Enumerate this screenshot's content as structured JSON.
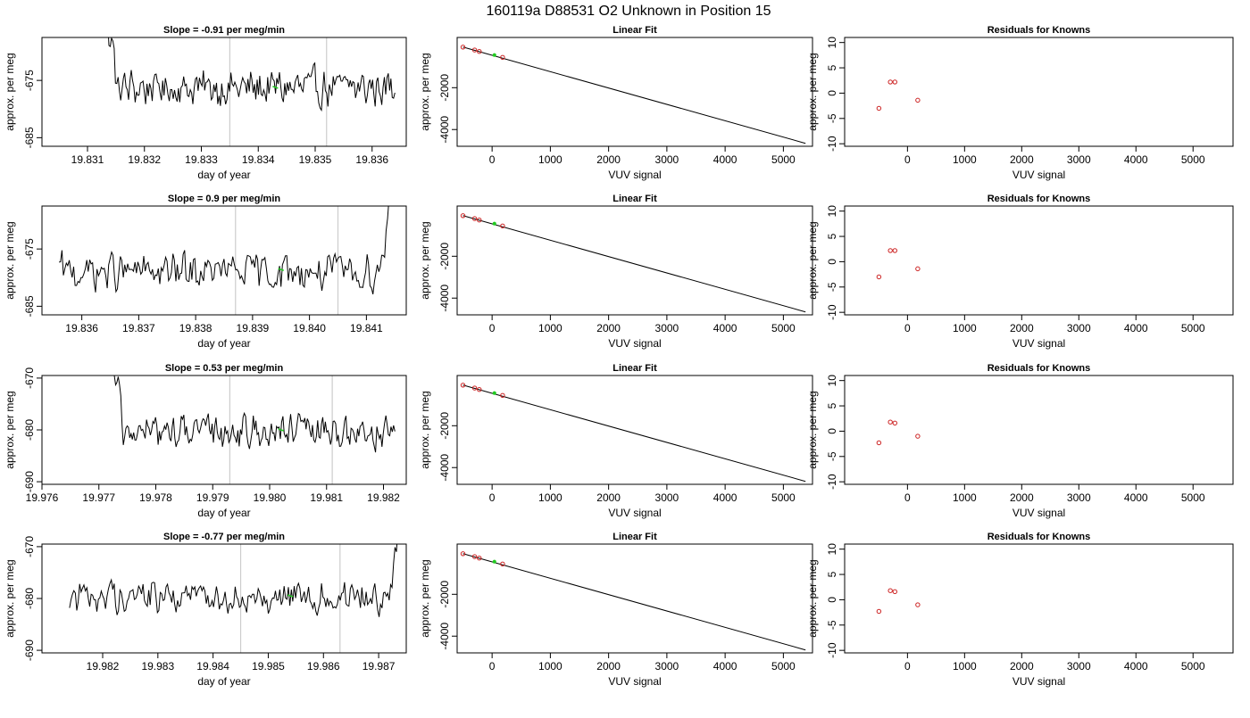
{
  "title": "160119a      D88531   O2 Unknown in Position  15",
  "colors": {
    "axis": "#000000",
    "trace": "#000000",
    "fit_line": "#000000",
    "marker_line": "#cccccc",
    "known_points": "#cc2222",
    "unknown_point": "#22cc22"
  },
  "chart_data": [
    {
      "type": "line",
      "panel": "time-series",
      "row": 1,
      "title": "Slope =  -0.91  per meg/min",
      "xlabel": "day of year",
      "ylabel": "approx. per meg",
      "xlim": [
        19.8302,
        19.8366
      ],
      "ylim": [
        -686.5,
        -667.5
      ],
      "xticks": [
        19.831,
        19.832,
        19.833,
        19.834,
        19.835,
        19.836
      ],
      "xtick_labels": [
        "19.831",
        "19.832",
        "19.833",
        "19.834",
        "19.835",
        "19.836"
      ],
      "yticks": [
        -675,
        -685
      ],
      "ytick_labels": [
        "-675",
        "-685"
      ],
      "trace_start": 19.8311,
      "trace_end": 19.8364,
      "base": -676.3,
      "spike_end": 19.8315,
      "spike_top": -667.5,
      "spike_side": "left",
      "vlines": [
        19.8335,
        19.8352
      ],
      "green_point": {
        "x": 19.8343,
        "y": -676.2
      }
    },
    {
      "type": "scatter",
      "panel": "linear-fit",
      "row": 1,
      "title": "Linear Fit",
      "xlabel": "VUV signal",
      "ylabel": "approx. per meg",
      "xlim": [
        -600,
        5500
      ],
      "ylim": [
        -4800,
        400
      ],
      "xticks": [
        0,
        1000,
        2000,
        3000,
        4000,
        5000
      ],
      "xtick_labels": [
        "0",
        "1000",
        "2000",
        "3000",
        "4000",
        "5000"
      ],
      "yticks": [
        -2000,
        -4000
      ],
      "ytick_labels": [
        "-2000",
        "-4000"
      ],
      "fit_line": {
        "x": [
          -500,
          5380
        ],
        "y": [
          -60,
          -4660
        ]
      },
      "known_points": {
        "x": [
          -500,
          -300,
          -220,
          180
        ],
        "y": [
          -60,
          -200,
          -270,
          -550
        ]
      },
      "unknown_point": {
        "x": 40,
        "y": -440
      }
    },
    {
      "type": "scatter",
      "panel": "residuals",
      "row": 1,
      "title": "Residuals for Knowns",
      "xlabel": "VUV signal",
      "ylabel": "approx. per meg",
      "xlim": [
        -1100,
        5700
      ],
      "ylim": [
        -10.5,
        11
      ],
      "xticks": [
        0,
        1000,
        2000,
        3000,
        4000,
        5000
      ],
      "xtick_labels": [
        "0",
        "1000",
        "2000",
        "3000",
        "4000",
        "5000"
      ],
      "yticks": [
        10,
        5,
        0,
        -5,
        -10
      ],
      "ytick_labels": [
        "10",
        "5",
        "0",
        "-5",
        "-10"
      ],
      "x": [
        -500,
        -300,
        -220,
        180
      ],
      "y": [
        -3.0,
        2.2,
        2.2,
        -1.4
      ]
    },
    {
      "type": "line",
      "panel": "time-series",
      "row": 2,
      "title": "Slope =  0.9  per meg/min",
      "xlabel": "day of year",
      "ylabel": "approx. per meg",
      "xlim": [
        19.8353,
        19.8417
      ],
      "ylim": [
        -686.5,
        -667.5
      ],
      "xticks": [
        19.836,
        19.837,
        19.838,
        19.839,
        19.84,
        19.841
      ],
      "xtick_labels": [
        "19.836",
        "19.837",
        "19.838",
        "19.839",
        "19.840",
        "19.841"
      ],
      "yticks": [
        -675,
        -685
      ],
      "ytick_labels": [
        "-675",
        "-685"
      ],
      "trace_start": 19.8356,
      "trace_end": 19.8415,
      "base": -679.0,
      "spike_end": 19.8412,
      "spike_top": -667.5,
      "spike_side": "right",
      "vlines": [
        19.8387,
        19.8405
      ],
      "green_point": {
        "x": 19.8395,
        "y": -678.6
      }
    },
    {
      "type": "scatter",
      "panel": "linear-fit",
      "row": 2,
      "title": "Linear Fit",
      "xlabel": "VUV signal",
      "ylabel": "approx. per meg",
      "xlim": [
        -600,
        5500
      ],
      "ylim": [
        -4800,
        400
      ],
      "xticks": [
        0,
        1000,
        2000,
        3000,
        4000,
        5000
      ],
      "xtick_labels": [
        "0",
        "1000",
        "2000",
        "3000",
        "4000",
        "5000"
      ],
      "yticks": [
        -2000,
        -4000
      ],
      "ytick_labels": [
        "-2000",
        "-4000"
      ],
      "fit_line": {
        "x": [
          -500,
          5380
        ],
        "y": [
          -60,
          -4660
        ]
      },
      "known_points": {
        "x": [
          -500,
          -300,
          -220,
          180
        ],
        "y": [
          -60,
          -200,
          -270,
          -550
        ]
      },
      "unknown_point": {
        "x": 40,
        "y": -440
      }
    },
    {
      "type": "scatter",
      "panel": "residuals",
      "row": 2,
      "title": "Residuals for Knowns",
      "xlabel": "VUV signal",
      "ylabel": "approx. per meg",
      "xlim": [
        -1100,
        5700
      ],
      "ylim": [
        -10.5,
        11
      ],
      "xticks": [
        0,
        1000,
        2000,
        3000,
        4000,
        5000
      ],
      "xtick_labels": [
        "0",
        "1000",
        "2000",
        "3000",
        "4000",
        "5000"
      ],
      "yticks": [
        10,
        5,
        0,
        -5,
        -10
      ],
      "ytick_labels": [
        "10",
        "5",
        "0",
        "-5",
        "-10"
      ],
      "x": [
        -500,
        -300,
        -220,
        180
      ],
      "y": [
        -3.0,
        2.2,
        2.2,
        -1.4
      ]
    },
    {
      "type": "line",
      "panel": "time-series",
      "row": 3,
      "title": "Slope =  0.53  per meg/min",
      "xlabel": "day of year",
      "ylabel": "approx. per meg",
      "xlim": [
        19.976,
        19.9824
      ],
      "ylim": [
        -690.5,
        -669.5
      ],
      "xticks": [
        19.976,
        19.977,
        19.978,
        19.979,
        19.98,
        19.981,
        19.982
      ],
      "xtick_labels": [
        "19.976",
        "19.977",
        "19.978",
        "19.979",
        "19.980",
        "19.981",
        "19.982"
      ],
      "yticks": [
        -670,
        -680,
        -690
      ],
      "ytick_labels": [
        "-670",
        "-680",
        "-690"
      ],
      "trace_start": 19.977,
      "trace_end": 19.9822,
      "base": -680.3,
      "spike_end": 19.9774,
      "spike_top": -669.5,
      "spike_side": "left",
      "vlines": [
        19.9793,
        19.9811
      ],
      "green_point": {
        "x": 19.9802,
        "y": -680.0
      }
    },
    {
      "type": "scatter",
      "panel": "linear-fit",
      "row": 3,
      "title": "Linear Fit",
      "xlabel": "VUV signal",
      "ylabel": "approx. per meg",
      "xlim": [
        -600,
        5500
      ],
      "ylim": [
        -4800,
        400
      ],
      "xticks": [
        0,
        1000,
        2000,
        3000,
        4000,
        5000
      ],
      "xtick_labels": [
        "0",
        "1000",
        "2000",
        "3000",
        "4000",
        "5000"
      ],
      "yticks": [
        -2000,
        -4000
      ],
      "ytick_labels": [
        "-2000",
        "-4000"
      ],
      "fit_line": {
        "x": [
          -500,
          5380
        ],
        "y": [
          -60,
          -4660
        ]
      },
      "known_points": {
        "x": [
          -500,
          -300,
          -220,
          180
        ],
        "y": [
          -60,
          -200,
          -270,
          -550
        ]
      },
      "unknown_point": {
        "x": 40,
        "y": -440
      }
    },
    {
      "type": "scatter",
      "panel": "residuals",
      "row": 3,
      "title": "Residuals for Knowns",
      "xlabel": "VUV signal",
      "ylabel": "approx. per meg",
      "xlim": [
        -1100,
        5700
      ],
      "ylim": [
        -10.5,
        11
      ],
      "xticks": [
        0,
        1000,
        2000,
        3000,
        4000,
        5000
      ],
      "xtick_labels": [
        "0",
        "1000",
        "2000",
        "3000",
        "4000",
        "5000"
      ],
      "yticks": [
        10,
        5,
        0,
        -5,
        -10
      ],
      "ytick_labels": [
        "10",
        "5",
        "0",
        "-5",
        "-10"
      ],
      "x": [
        -500,
        -300,
        -220,
        180
      ],
      "y": [
        -2.3,
        1.8,
        1.6,
        -1.0
      ]
    },
    {
      "type": "line",
      "panel": "time-series",
      "row": 4,
      "title": "Slope =  -0.77  per meg/min",
      "xlabel": "day of year",
      "ylabel": "approx. per meg",
      "xlim": [
        19.9809,
        19.9875
      ],
      "ylim": [
        -690.5,
        -669.5
      ],
      "xticks": [
        19.982,
        19.983,
        19.984,
        19.985,
        19.986,
        19.987
      ],
      "xtick_labels": [
        "19.982",
        "19.983",
        "19.984",
        "19.985",
        "19.986",
        "19.987"
      ],
      "yticks": [
        -670,
        -680,
        -690
      ],
      "ytick_labels": [
        "-670",
        "-680",
        "-690"
      ],
      "trace_start": 19.9814,
      "trace_end": 19.9874,
      "base": -679.5,
      "spike_end": 19.9872,
      "spike_top": -669.5,
      "spike_side": "right",
      "vlines": [
        19.9845,
        19.9863
      ],
      "green_point": {
        "x": 19.9854,
        "y": -679.5
      }
    },
    {
      "type": "scatter",
      "panel": "linear-fit",
      "row": 4,
      "title": "Linear Fit",
      "xlabel": "VUV signal",
      "ylabel": "approx. per meg",
      "xlim": [
        -600,
        5500
      ],
      "ylim": [
        -4800,
        400
      ],
      "xticks": [
        0,
        1000,
        2000,
        3000,
        4000,
        5000
      ],
      "xtick_labels": [
        "0",
        "1000",
        "2000",
        "3000",
        "4000",
        "5000"
      ],
      "yticks": [
        -2000,
        -4000
      ],
      "ytick_labels": [
        "-2000",
        "-4000"
      ],
      "fit_line": {
        "x": [
          -500,
          5380
        ],
        "y": [
          -60,
          -4660
        ]
      },
      "known_points": {
        "x": [
          -500,
          -300,
          -220,
          180
        ],
        "y": [
          -60,
          -200,
          -270,
          -550
        ]
      },
      "unknown_point": {
        "x": 40,
        "y": -440
      }
    },
    {
      "type": "scatter",
      "panel": "residuals",
      "row": 4,
      "title": "Residuals for Knowns",
      "xlabel": "VUV signal",
      "ylabel": "approx. per meg",
      "xlim": [
        -1100,
        5700
      ],
      "ylim": [
        -10.5,
        11
      ],
      "xticks": [
        0,
        1000,
        2000,
        3000,
        4000,
        5000
      ],
      "xtick_labels": [
        "0",
        "1000",
        "2000",
        "3000",
        "4000",
        "5000"
      ],
      "yticks": [
        10,
        5,
        0,
        -5,
        -10
      ],
      "ytick_labels": [
        "10",
        "5",
        "0",
        "-5",
        "-10"
      ],
      "x": [
        -500,
        -300,
        -220,
        180
      ],
      "y": [
        -2.3,
        1.8,
        1.6,
        -1.0
      ]
    }
  ]
}
